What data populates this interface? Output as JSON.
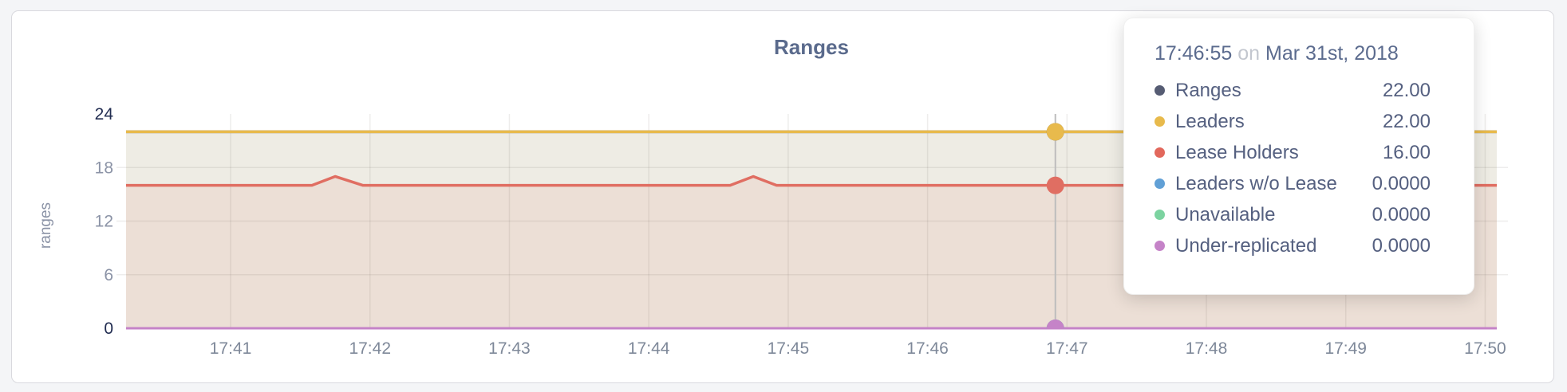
{
  "card": {
    "background": "#ffffff",
    "border_color": "#d9d9de"
  },
  "chart_data": {
    "type": "area",
    "title": "Ranges",
    "xlabel": "",
    "ylabel": "ranges",
    "ylim": [
      0,
      24
    ],
    "y_ticks": [
      0,
      6,
      12,
      18,
      24
    ],
    "grid": true,
    "legend_position": "tooltip",
    "x_domain_seconds": [
      15,
      605
    ],
    "x_ticks": [
      {
        "label": "17:41",
        "t": 60
      },
      {
        "label": "17:42",
        "t": 120
      },
      {
        "label": "17:43",
        "t": 180
      },
      {
        "label": "17:44",
        "t": 240
      },
      {
        "label": "17:45",
        "t": 300
      },
      {
        "label": "17:46",
        "t": 360
      },
      {
        "label": "17:47",
        "t": 420
      },
      {
        "label": "17:48",
        "t": 480
      },
      {
        "label": "17:49",
        "t": 540
      },
      {
        "label": "17:50",
        "t": 600
      }
    ],
    "series": [
      {
        "name": "Ranges",
        "color": "#565c73",
        "fill": null,
        "points": [
          [
            15,
            22
          ],
          [
            605,
            22
          ]
        ]
      },
      {
        "name": "Leaders",
        "color": "#e8ba4c",
        "fill": "#eeece4",
        "points": [
          [
            15,
            22
          ],
          [
            605,
            22
          ]
        ]
      },
      {
        "name": "Lease Holders",
        "color": "#e06e62",
        "fill": "rgba(224,110,98,0.10)",
        "points": [
          [
            15,
            16
          ],
          [
            95,
            16
          ],
          [
            105,
            17
          ],
          [
            117,
            16
          ],
          [
            275,
            16
          ],
          [
            285,
            17
          ],
          [
            295,
            16
          ],
          [
            605,
            16
          ]
        ]
      },
      {
        "name": "Leaders w/o Lease",
        "color": "#61a0d6",
        "fill": null,
        "points": [
          [
            15,
            0
          ],
          [
            605,
            0
          ]
        ]
      },
      {
        "name": "Unavailable",
        "color": "#7cd3a0",
        "fill": null,
        "points": [
          [
            15,
            0
          ],
          [
            605,
            0
          ]
        ]
      },
      {
        "name": "Under-replicated",
        "color": "#c583c8",
        "fill": null,
        "points": [
          [
            15,
            0
          ],
          [
            605,
            0
          ]
        ]
      }
    ],
    "hover": {
      "t": 415,
      "time": "17:46:55",
      "line_color": "#bdbdbd",
      "dot_radius": 11,
      "dot_series": [
        "Ranges",
        "Leaders",
        "Lease Holders",
        "Leaders w/o Lease",
        "Unavailable",
        "Under-replicated"
      ]
    }
  },
  "tooltip": {
    "time": "17:46:55",
    "separator": "on",
    "date": "Mar 31st, 2018",
    "rows": [
      {
        "label": "Ranges",
        "value": "22.00",
        "color": "#565c73"
      },
      {
        "label": "Leaders",
        "value": "22.00",
        "color": "#e8ba4c"
      },
      {
        "label": "Lease Holders",
        "value": "16.00",
        "color": "#e2685c"
      },
      {
        "label": "Leaders w/o Lease",
        "value": "0.0000",
        "color": "#61a0d6"
      },
      {
        "label": "Unavailable",
        "value": "0.0000",
        "color": "#7cd3a0"
      },
      {
        "label": "Under-replicated",
        "value": "0.0000",
        "color": "#c583c8"
      }
    ]
  }
}
